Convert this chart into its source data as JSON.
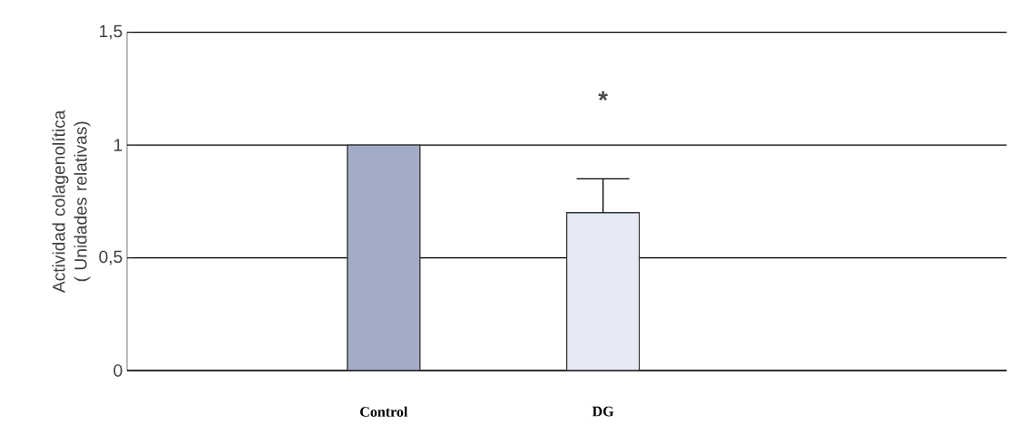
{
  "chart_data": {
    "type": "bar",
    "ylabel": "Actividad colagenolítica ( Unidades relativas)",
    "categories": [
      "Control",
      "DG"
    ],
    "values": [
      1.0,
      0.7
    ],
    "errors": [
      null,
      [
        0.7,
        0.85
      ]
    ],
    "colors": [
      "#a3acc6",
      "#e6eaf4"
    ],
    "ylim": [
      0,
      1.5
    ],
    "yticks": [
      {
        "value": 0,
        "label": "0"
      },
      {
        "value": 0.5,
        "label": "0,5"
      },
      {
        "value": 1,
        "label": "1"
      },
      {
        "value": 1.5,
        "label": "1,5"
      }
    ],
    "grid": "y",
    "annotations": [
      "*"
    ]
  }
}
